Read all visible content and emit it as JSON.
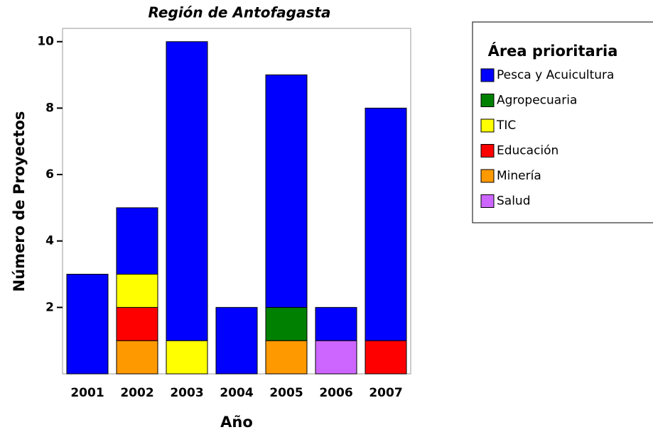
{
  "chart_data": {
    "type": "stacked_bar",
    "title": "Región de Antofagasta",
    "x_label": "Año",
    "y_label": "Número de Proyectos",
    "categories": [
      "2001",
      "2002",
      "2003",
      "2004",
      "2005",
      "2006",
      "2007"
    ],
    "series": [
      {
        "name": "Pesca y Acuicultura",
        "color": "#0000ff",
        "values": [
          3,
          2,
          9,
          2,
          7,
          1,
          7
        ]
      },
      {
        "name": "Agropecuaria",
        "color": "#008000",
        "values": [
          0,
          0,
          0,
          0,
          1,
          0,
          0
        ]
      },
      {
        "name": "TIC",
        "color": "#ffff00",
        "values": [
          0,
          1,
          1,
          0,
          0,
          0,
          0
        ]
      },
      {
        "name": "Educación",
        "color": "#ff0000",
        "values": [
          0,
          1,
          0,
          0,
          0,
          0,
          1
        ]
      },
      {
        "name": "Minería",
        "color": "#ff9900",
        "values": [
          0,
          1,
          0,
          0,
          1,
          0,
          0
        ]
      },
      {
        "name": "Salud",
        "color": "#cc66ff",
        "values": [
          0,
          0,
          0,
          0,
          0,
          1,
          0
        ]
      }
    ],
    "legend_title": "Área prioritaria",
    "ylim": [
      0,
      10.4
    ],
    "yticks": [
      2,
      4,
      6,
      8,
      10
    ]
  }
}
